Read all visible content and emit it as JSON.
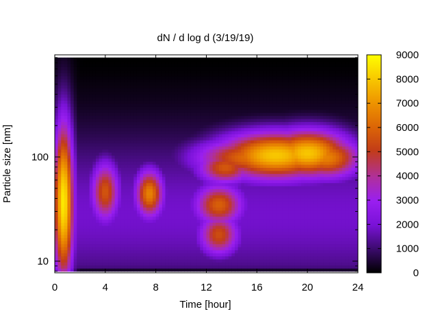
{
  "chart_data": {
    "type": "heatmap",
    "title": "dN / d log d (3/19/19)",
    "xlabel": "Time [hour]",
    "ylabel": "Particle size [nm]",
    "xlim": [
      0,
      24
    ],
    "ylim_nm": [
      8,
      900
    ],
    "y_scale": "log",
    "x_ticks": [
      "0",
      "4",
      "8",
      "12",
      "16",
      "20",
      "24"
    ],
    "y_ticks": [
      "10",
      "100"
    ],
    "colorbar": {
      "range": [
        0,
        9000
      ],
      "ticks": [
        "0",
        "1000",
        "2000",
        "3000",
        "4000",
        "5000",
        "6000",
        "7000",
        "8000",
        "9000"
      ],
      "colormap": [
        "#000000",
        "#3c0b6e",
        "#7a12d8",
        "#9a1ff0",
        "#b0309a",
        "#c23c18",
        "#dc6606",
        "#ee9400",
        "#f8c800",
        "#ffff00"
      ]
    },
    "features": [
      {
        "time_h": 0.7,
        "size_nm": 38,
        "value": 8000
      },
      {
        "time_h": 4.0,
        "size_nm": 47,
        "value": 5000
      },
      {
        "time_h": 7.5,
        "size_nm": 45,
        "value": 6000
      },
      {
        "time_h": 13.0,
        "size_nm": 18,
        "value": 4800
      },
      {
        "time_h": 13.0,
        "size_nm": 35,
        "value": 5200
      },
      {
        "time_h": 13.5,
        "size_nm": 80,
        "value": 5200
      },
      {
        "time_h": 15.5,
        "size_nm": 100,
        "value": 5800
      },
      {
        "time_h": 17.5,
        "size_nm": 105,
        "value": 7600
      },
      {
        "time_h": 20.0,
        "size_nm": 110,
        "value": 7600
      },
      {
        "time_h": 21.5,
        "size_nm": 100,
        "value": 6200
      }
    ]
  }
}
